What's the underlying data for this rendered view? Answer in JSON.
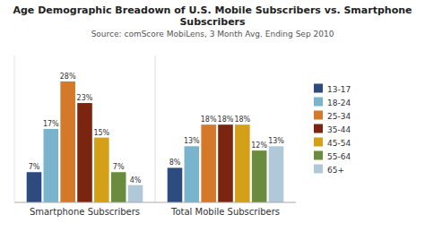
{
  "chart_data": {
    "type": "bar",
    "title": "Age Demographic Breadown of U.S. Mobile Subscribers vs. Smartphone Subscribers",
    "subtitle": "Source: comScore MobiLens, 3 Month Avg. Ending Sep 2010",
    "categories": [
      "Smartphone Subscribers",
      "Total Mobile Subscribers"
    ],
    "series": [
      {
        "name": "13-17",
        "color": "#2d4b7e",
        "values": [
          7,
          8
        ],
        "value_labels": [
          "7%",
          "8%"
        ]
      },
      {
        "name": "18-24",
        "color": "#7ab3cc",
        "values": [
          17,
          13
        ],
        "value_labels": [
          "17%",
          "13%"
        ]
      },
      {
        "name": "25-34",
        "color": "#d4782a",
        "values": [
          28,
          18
        ],
        "value_labels": [
          "28%",
          "18%"
        ]
      },
      {
        "name": "35-44",
        "color": "#7b2510",
        "values": [
          23,
          18
        ],
        "value_labels": [
          "23%",
          "18%"
        ]
      },
      {
        "name": "45-54",
        "color": "#d4a017",
        "values": [
          15,
          18
        ],
        "value_labels": [
          "15%",
          "18%"
        ]
      },
      {
        "name": "55-64",
        "color": "#6b8c3e",
        "values": [
          7,
          12
        ],
        "value_labels": [
          "7%",
          "12%"
        ]
      },
      {
        "name": "65+",
        "color": "#b0c8d8",
        "values": [
          4,
          13
        ],
        "value_labels": [
          "4%",
          "13%"
        ]
      }
    ],
    "ylim": [
      0,
      34
    ],
    "data_labels": true,
    "tick_labels": "x",
    "legend": "right",
    "grid": false
  }
}
